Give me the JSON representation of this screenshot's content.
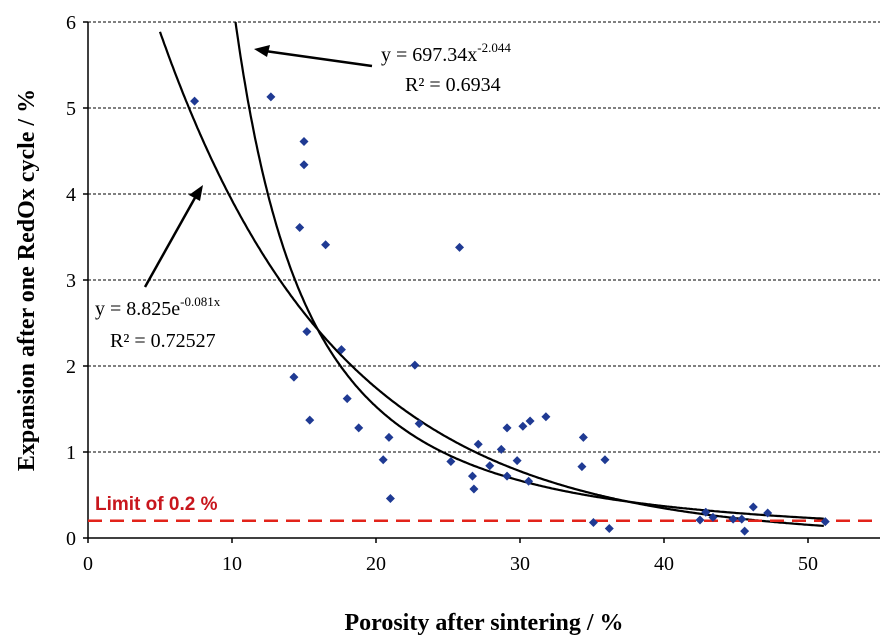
{
  "chart_data": {
    "type": "scatter",
    "xlabel": "Porosity after sintering / %",
    "ylabel": "Expansion after one RedOx cycle  / %",
    "xlim": [
      0,
      55
    ],
    "ylim": [
      0,
      6
    ],
    "xticks": [
      "0",
      "10",
      "20",
      "30",
      "40",
      "50"
    ],
    "yticks": [
      "0",
      "1",
      "2",
      "3",
      "4",
      "5",
      "6"
    ],
    "grid": "horizontal dashed",
    "colors": {
      "points": "#1f3a93",
      "limit": "#e2231a",
      "limit_text": "#c8161d",
      "curves": "#000000"
    },
    "points": [
      [
        7.4,
        5.08
      ],
      [
        12.7,
        5.13
      ],
      [
        15.0,
        4.61
      ],
      [
        15.0,
        4.34
      ],
      [
        14.7,
        3.61
      ],
      [
        16.5,
        3.41
      ],
      [
        25.8,
        3.38
      ],
      [
        15.2,
        2.4
      ],
      [
        17.6,
        2.19
      ],
      [
        22.7,
        2.01
      ],
      [
        14.3,
        1.87
      ],
      [
        18.0,
        1.62
      ],
      [
        15.4,
        1.37
      ],
      [
        18.8,
        1.28
      ],
      [
        20.9,
        1.17
      ],
      [
        23.0,
        1.33
      ],
      [
        20.5,
        0.91
      ],
      [
        21.0,
        0.46
      ],
      [
        25.2,
        0.89
      ],
      [
        26.7,
        0.72
      ],
      [
        26.8,
        0.57
      ],
      [
        27.1,
        1.09
      ],
      [
        27.9,
        0.84
      ],
      [
        28.7,
        1.03
      ],
      [
        29.1,
        1.28
      ],
      [
        29.1,
        0.72
      ],
      [
        29.8,
        0.9
      ],
      [
        30.2,
        1.3
      ],
      [
        30.7,
        1.36
      ],
      [
        30.6,
        0.66
      ],
      [
        31.8,
        1.41
      ],
      [
        34.4,
        1.17
      ],
      [
        34.3,
        0.83
      ],
      [
        35.9,
        0.91
      ],
      [
        35.1,
        0.18
      ],
      [
        36.2,
        0.11
      ],
      [
        42.5,
        0.21
      ],
      [
        42.9,
        0.3
      ],
      [
        43.4,
        0.24
      ],
      [
        44.8,
        0.22
      ],
      [
        45.4,
        0.22
      ],
      [
        45.6,
        0.08
      ],
      [
        46.2,
        0.36
      ],
      [
        47.2,
        0.29
      ],
      [
        51.2,
        0.19
      ]
    ],
    "fits": [
      {
        "type": "power",
        "a": 697.34,
        "b": -2.044,
        "equation": "y = 697.34x",
        "exponent": "-2.044",
        "r2": "R² = 0.6934"
      },
      {
        "type": "exponential",
        "a": 8.825,
        "b": -0.081,
        "equation": "y = 8.825e",
        "exponent": "-0.081x",
        "r2": "R² = 0.72527"
      }
    ],
    "limit": {
      "value": 0.2,
      "label": "Limit of 0.2 %"
    }
  }
}
